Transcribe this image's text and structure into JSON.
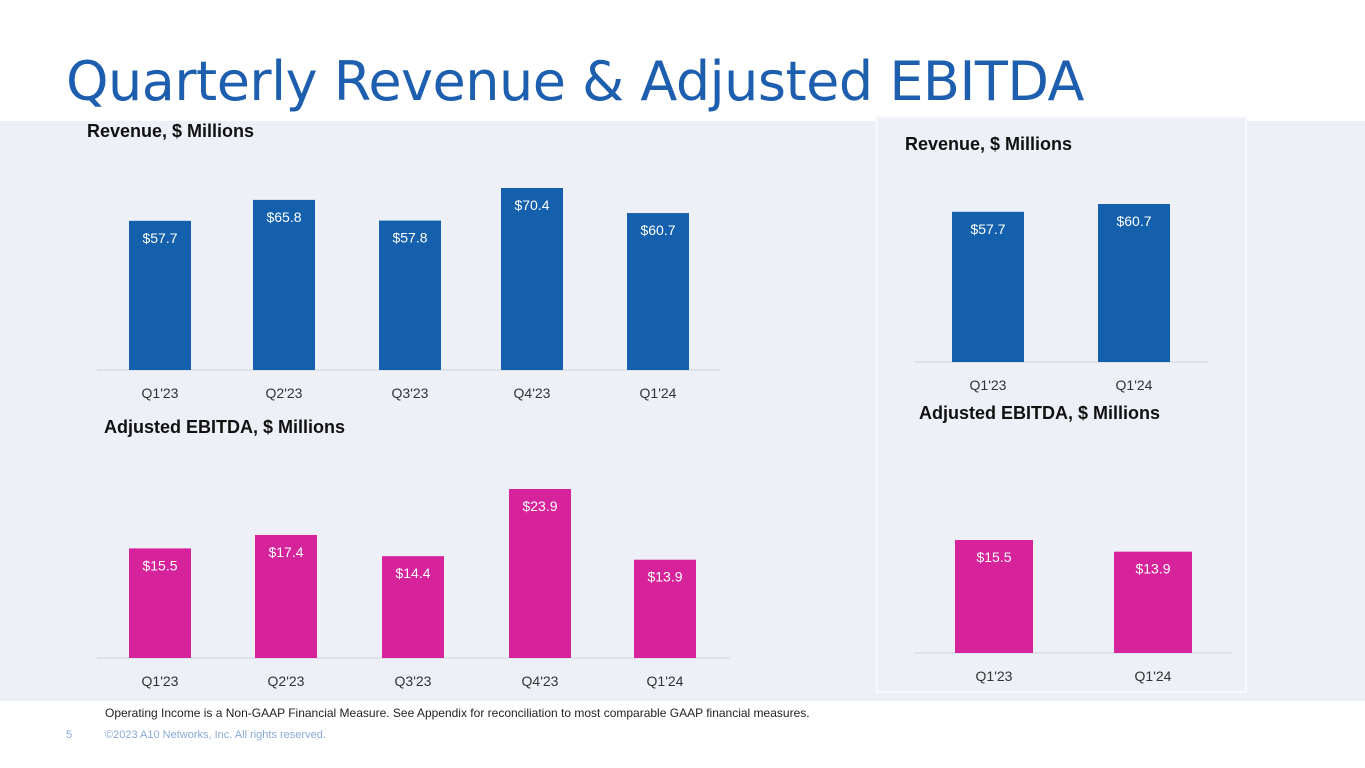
{
  "page": {
    "title": "Quarterly Revenue & Adjusted EBITDA",
    "footnote": "Operating Income is a Non-GAAP Financial Measure. See Appendix for reconciliation to most comparable GAAP financial measures.",
    "page_number": "5",
    "copyright": "©2023 A10 Networks, Inc. All rights reserved."
  },
  "colors": {
    "revenue": "#1460ad",
    "ebitda": "#d6239b",
    "title": "#1d5fae"
  },
  "chart_data": [
    {
      "type": "bar",
      "title": "Revenue, $ Millions",
      "categories": [
        "Q1'23",
        "Q2'23",
        "Q3'23",
        "Q4'23",
        "Q1'24"
      ],
      "values": [
        57.7,
        65.8,
        57.8,
        70.4,
        60.7
      ],
      "labels": [
        "$57.7",
        "$65.8",
        "$57.8",
        "$70.4",
        "$60.7"
      ],
      "color": "#1460ad",
      "ylim": [
        0,
        70.4
      ]
    },
    {
      "type": "bar",
      "title": "Adjusted EBITDA, $ Millions",
      "categories": [
        "Q1'23",
        "Q2'23",
        "Q3'23",
        "Q4'23",
        "Q1'24"
      ],
      "values": [
        15.5,
        17.4,
        14.4,
        23.9,
        13.9
      ],
      "labels": [
        "$15.5",
        "$17.4",
        "$14.4",
        "$23.9",
        "$13.9"
      ],
      "color": "#d6239b",
      "ylim": [
        0,
        23.9
      ]
    },
    {
      "type": "bar",
      "title": "Revenue, $ Millions",
      "categories": [
        "Q1'23",
        "Q1'24"
      ],
      "values": [
        57.7,
        60.7
      ],
      "labels": [
        "$57.7",
        "$60.7"
      ],
      "color": "#1460ad",
      "ylim": [
        0,
        60.7
      ]
    },
    {
      "type": "bar",
      "title": "Adjusted EBITDA, $ Millions",
      "categories": [
        "Q1'23",
        "Q1'24"
      ],
      "values": [
        15.5,
        13.9
      ],
      "labels": [
        "$15.5",
        "$13.9"
      ],
      "color": "#d6239b",
      "ylim": [
        0,
        15.5
      ]
    }
  ]
}
